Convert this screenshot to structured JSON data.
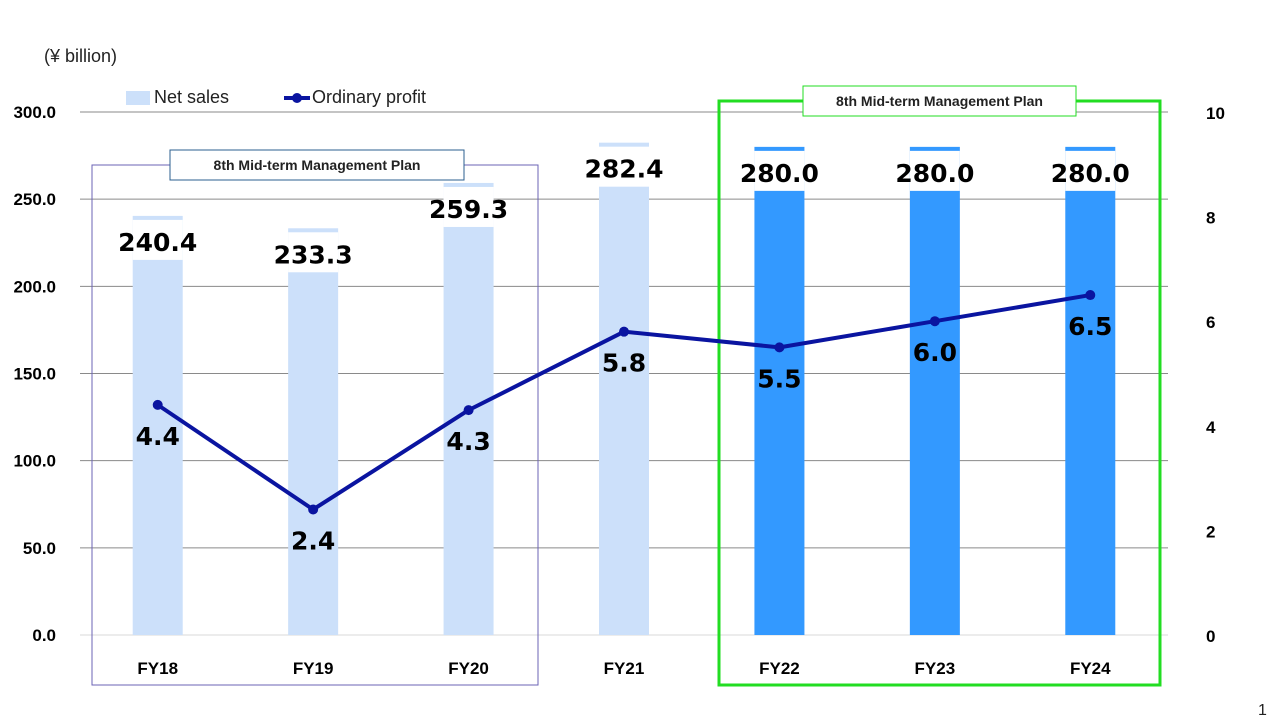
{
  "chart_data": {
    "type": "bar",
    "unit_label": "(¥ billion)",
    "categories": [
      "FY18",
      "FY19",
      "FY20",
      "FY21",
      "FY22",
      "FY23",
      "FY24"
    ],
    "series": [
      {
        "name": "Net sales",
        "axis": "left",
        "values": [
          240.4,
          233.3,
          259.3,
          282.4,
          280.0,
          280.0,
          280.0
        ],
        "labels": [
          "240.4",
          "233.3",
          "259.3",
          "282.4",
          "280.0",
          "280.0",
          "280.0"
        ],
        "colors": [
          "#cce0fa",
          "#cce0fa",
          "#cce0fa",
          "#cce0fa",
          "#3399ff",
          "#3399ff",
          "#3399ff"
        ]
      },
      {
        "name": "Ordinary profit",
        "type": "line",
        "axis": "right",
        "values": [
          4.4,
          2.4,
          4.3,
          5.8,
          5.5,
          6.0,
          6.5
        ],
        "labels": [
          "4.4",
          "2.4",
          "4.3",
          "5.8",
          "5.5",
          "6.0",
          "6.5"
        ],
        "color": "#0a14a0"
      }
    ],
    "y_left": {
      "range": [
        0,
        300
      ],
      "ticks": [
        "0.0",
        "50.0",
        "100.0",
        "150.0",
        "200.0",
        "250.0",
        "300.0"
      ]
    },
    "y_right": {
      "range": [
        0,
        10
      ],
      "ticks": [
        "0",
        "2",
        "4",
        "6",
        "8",
        "10"
      ]
    },
    "grid": true,
    "legend": "top-left",
    "annotations": [
      {
        "text": "8th Mid-term Management Plan",
        "spans": [
          "FY18",
          "FY20"
        ],
        "border_color": "#6b63b5"
      },
      {
        "text": "8th Mid-term Management Plan",
        "spans": [
          "FY22",
          "FY24"
        ],
        "border_color": "#22dd22"
      }
    ]
  },
  "page_number": "1"
}
